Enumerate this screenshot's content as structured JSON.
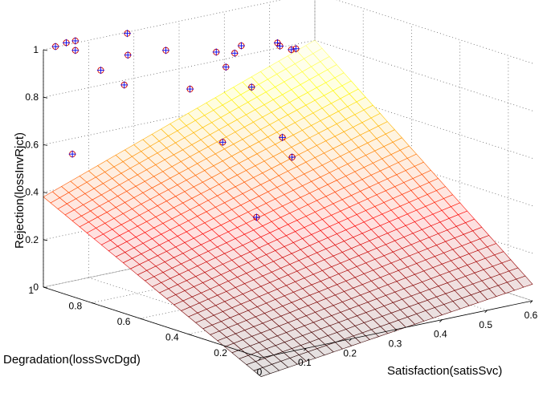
{
  "chart_data": {
    "type": "surface3d",
    "xlabel": "Satisfaction(satisSvc)",
    "ylabel": "Degradation(lossSvcDgd)",
    "zlabel": "Rejection(lossInvRjct)",
    "xlim": [
      0,
      0.6
    ],
    "ylim": [
      0.1,
      1
    ],
    "zlim": [
      0,
      1
    ],
    "x_ticks": [
      "0",
      "0.1",
      "0.2",
      "0.3",
      "0.4",
      "0.5",
      "0.6"
    ],
    "y_ticks": [
      "0.2",
      "0.4",
      "0.6",
      "0.8",
      "1"
    ],
    "z_ticks": [
      "0",
      "0.2",
      "0.4",
      "0.6",
      "0.8",
      "1"
    ],
    "grid": true,
    "colormap": "hot",
    "surface": {
      "description": "fitted plane",
      "z_at_x0_y0.1": -0.08,
      "z_at_x0.6_y0.1": 0.07,
      "z_at_x0_y1": 0.38,
      "z_at_x0.6_y1": 0.8
    },
    "points": [
      {
        "x": 0.0,
        "y": 0.95,
        "z": 1.03
      },
      {
        "x": 0.04,
        "y": 0.98,
        "z": 1.02
      },
      {
        "x": 0.06,
        "y": 0.98,
        "z": 1.02
      },
      {
        "x": 0.06,
        "y": 0.98,
        "z": 0.98
      },
      {
        "x": 0.1,
        "y": 0.95,
        "z": 0.89
      },
      {
        "x": 0.0,
        "y": 0.88,
        "z": 0.6
      },
      {
        "x": 0.12,
        "y": 0.89,
        "z": 0.84
      },
      {
        "x": 0.16,
        "y": 0.95,
        "z": 0.93
      },
      {
        "x": 0.18,
        "y": 0.99,
        "z": 1.0
      },
      {
        "x": 0.26,
        "y": 0.98,
        "z": 0.9
      },
      {
        "x": 0.26,
        "y": 0.88,
        "z": 0.77
      },
      {
        "x": 0.33,
        "y": 0.97,
        "z": 1.26
      },
      {
        "x": 0.33,
        "y": 0.96,
        "z": 1.25
      },
      {
        "x": 0.3,
        "y": 0.82,
        "z": 0.55
      },
      {
        "x": 0.35,
        "y": 0.94,
        "z": 0.87
      },
      {
        "x": 0.35,
        "y": 0.9,
        "z": 0.82
      },
      {
        "x": 0.38,
        "y": 0.92,
        "z": 0.86
      },
      {
        "x": 0.4,
        "y": 0.93,
        "z": 0.88
      },
      {
        "x": 0.38,
        "y": 0.85,
        "z": 0.74
      },
      {
        "x": 0.3,
        "y": 0.68,
        "z": 0.28
      },
      {
        "x": 0.48,
        "y": 0.93,
        "z": 0.86
      },
      {
        "x": 0.48,
        "y": 0.92,
        "z": 0.85
      },
      {
        "x": 0.5,
        "y": 0.91,
        "z": 0.83
      },
      {
        "x": 0.51,
        "y": 0.91,
        "z": 0.83
      },
      {
        "x": 0.4,
        "y": 0.76,
        "z": 0.55
      },
      {
        "x": 0.4,
        "y": 0.72,
        "z": 0.48
      }
    ]
  }
}
